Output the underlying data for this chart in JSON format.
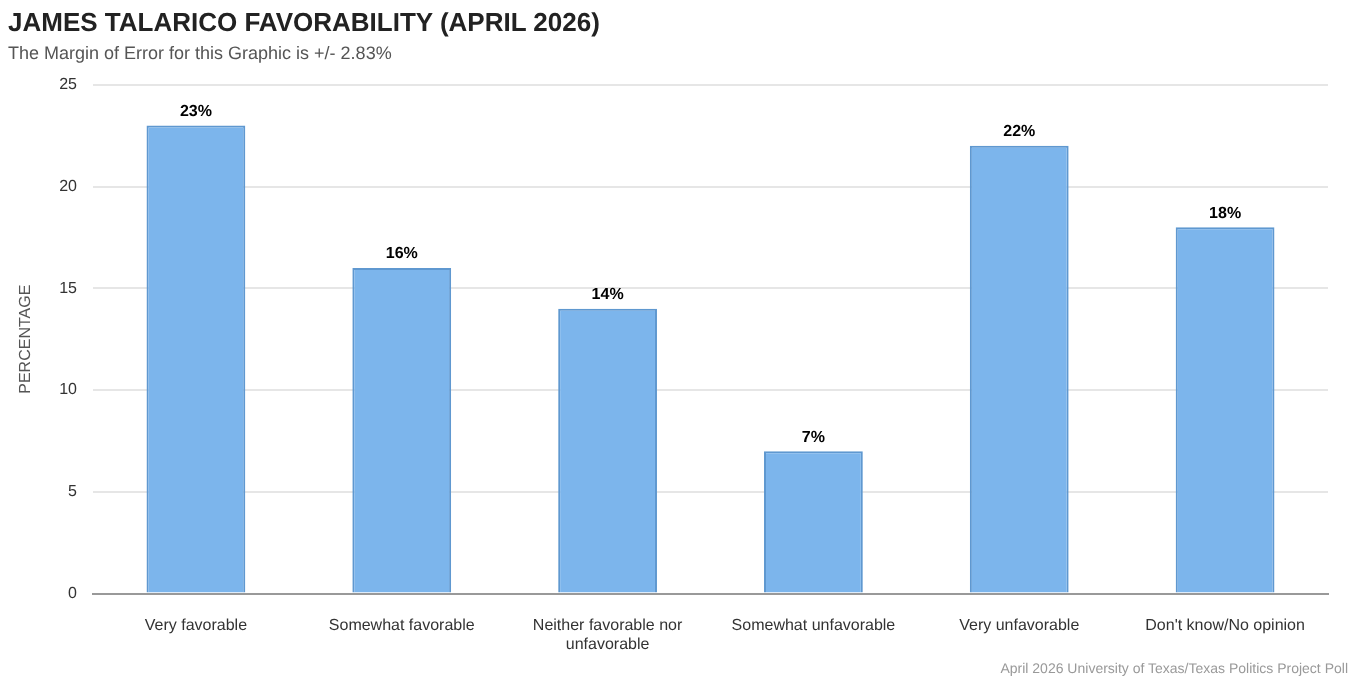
{
  "chart_data": {
    "type": "bar",
    "title": "JAMES TALARICO FAVORABILITY (APRIL 2026)",
    "subtitle": "The Margin of Error for this Graphic is +/- 2.83%",
    "ylabel": "PERCENTAGE",
    "categories": [
      "Very favorable",
      "Somewhat favorable",
      "Neither favorable nor unfavorable",
      "Somewhat unfavorable",
      "Very unfavorable",
      "Don't know/No opinion"
    ],
    "values": [
      23,
      16,
      14,
      7,
      22,
      18
    ],
    "value_labels": [
      "23%",
      "16%",
      "14%",
      "7%",
      "22%",
      "18%"
    ],
    "color": "#7cb5ec",
    "ylim": [
      0,
      25
    ],
    "yticks": [
      0,
      5,
      10,
      15,
      20,
      25
    ],
    "grid": "y",
    "legend": false,
    "annotations": [
      "April 2026 University of Texas/Texas Politics Project Poll"
    ]
  }
}
